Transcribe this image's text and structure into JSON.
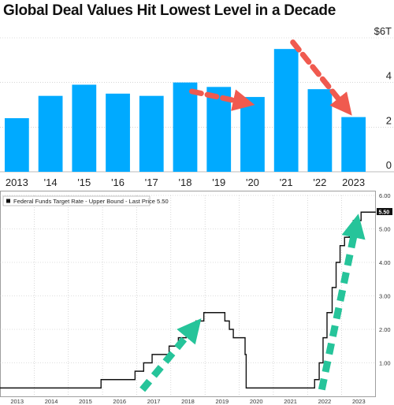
{
  "title": "Global Deal Values Hit Lowest Level in a Decade",
  "chart_data": [
    {
      "type": "bar",
      "title": "Global Deal Values Hit Lowest Level in a Decade",
      "categories": [
        "2013",
        "'14",
        "'15",
        "'16",
        "'17",
        "'18",
        "'19",
        "'20",
        "'21",
        "'22",
        "2023"
      ],
      "values": [
        2.4,
        3.4,
        3.9,
        3.5,
        3.4,
        4.0,
        3.8,
        3.35,
        5.5,
        3.7,
        2.45
      ],
      "y_ticks": [
        0,
        2,
        4,
        6
      ],
      "y_tick_labels": [
        "0",
        "2",
        "4",
        "$6T"
      ],
      "ylim": [
        0,
        6
      ],
      "unit": "$T",
      "bar_color": "#00aaff",
      "grid": true,
      "annotations": [
        {
          "type": "dashed-arrow",
          "color": "#f05a4f",
          "from": [
            "'18",
            3.6
          ],
          "to": [
            "'20",
            3.1
          ]
        },
        {
          "type": "dashed-arrow",
          "color": "#f05a4f",
          "from": [
            "'21",
            5.8
          ],
          "to": [
            "2023",
            2.9
          ]
        }
      ]
    },
    {
      "type": "line",
      "series": [
        {
          "name": "Federal Funds Target Rate - Upper Bound - Last Price",
          "color": "#111111",
          "step": true,
          "points": [
            [
              "2013-01-01",
              0.25
            ],
            [
              "2015-12-16",
              0.5
            ],
            [
              "2016-12-14",
              0.75
            ],
            [
              "2017-03-15",
              1.0
            ],
            [
              "2017-06-14",
              1.25
            ],
            [
              "2017-12-13",
              1.5
            ],
            [
              "2018-03-21",
              1.75
            ],
            [
              "2018-06-13",
              2.0
            ],
            [
              "2018-09-26",
              2.25
            ],
            [
              "2018-12-19",
              2.5
            ],
            [
              "2019-07-31",
              2.25
            ],
            [
              "2019-09-18",
              2.0
            ],
            [
              "2019-10-30",
              1.75
            ],
            [
              "2020-03-03",
              1.25
            ],
            [
              "2020-03-15",
              0.25
            ],
            [
              "2022-03-16",
              0.5
            ],
            [
              "2022-05-04",
              1.0
            ],
            [
              "2022-06-15",
              1.75
            ],
            [
              "2022-07-27",
              2.5
            ],
            [
              "2022-09-21",
              3.25
            ],
            [
              "2022-11-02",
              4.0
            ],
            [
              "2022-12-14",
              4.5
            ],
            [
              "2023-02-01",
              4.75
            ],
            [
              "2023-03-22",
              5.0
            ],
            [
              "2023-05-03",
              5.25
            ],
            [
              "2023-07-26",
              5.5
            ],
            [
              "2023-12-31",
              5.5
            ]
          ]
        }
      ],
      "legend": {
        "label": "Federal Funds Target Rate - Upper Bound - Last Price 5.50",
        "placement": "top-left"
      },
      "last_price_label": "5.50",
      "x_tick_labels": [
        "2013",
        "2014",
        "2015",
        "2016",
        "2017",
        "2018",
        "2019",
        "2020",
        "2021",
        "2022",
        "2023"
      ],
      "y_ticks": [
        1,
        2,
        3,
        4,
        5,
        6
      ],
      "y_tick_labels": [
        "1.00",
        "2.00",
        "3.00",
        "4.00",
        "5.00",
        "6.00"
      ],
      "ylim": [
        0,
        6
      ],
      "grid": true,
      "annotations": [
        {
          "type": "dashed-arrow",
          "color": "#26c49a",
          "from": [
            "2017-03-01",
            0.2
          ],
          "to": [
            "2018-09-01",
            2.05
          ]
        },
        {
          "type": "dashed-arrow",
          "color": "#26c49a",
          "from": [
            "2022-06-01",
            0.2
          ],
          "to": [
            "2023-06-01",
            5.1
          ]
        }
      ]
    }
  ]
}
